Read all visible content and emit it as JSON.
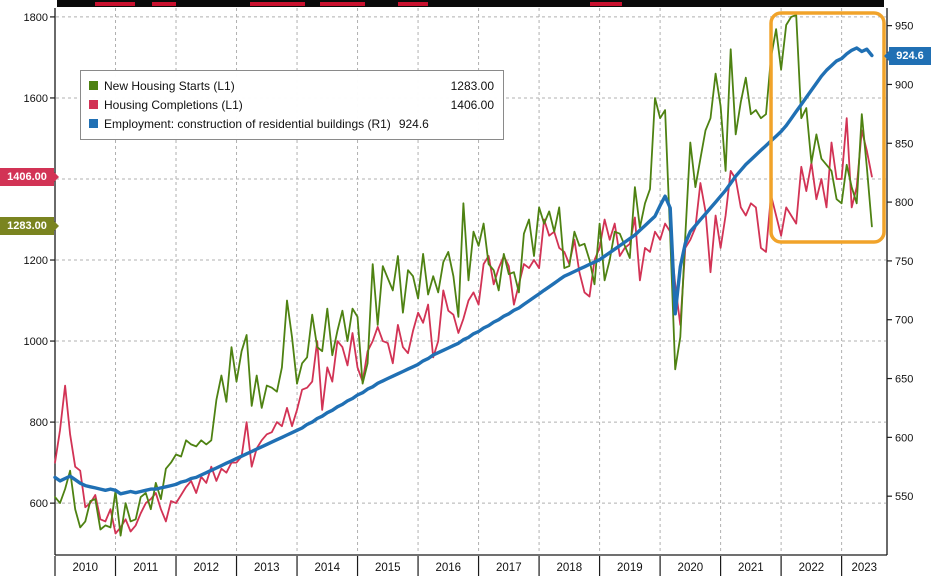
{
  "chart_data": {
    "type": "line",
    "title": "",
    "frequency": "monthly",
    "x_range": "Jan 2010 - Jul 2023",
    "categories": [
      "2010",
      "2011",
      "2012",
      "2013",
      "2014",
      "2015",
      "2016",
      "2017",
      "2018",
      "2019",
      "2020",
      "2021",
      "2022",
      "2023"
    ],
    "grid": true,
    "legend_position": "top-left",
    "left_axis": {
      "min": 472,
      "max": 1822,
      "ticks": [
        600,
        800,
        1000,
        1200,
        1400,
        1600,
        1800
      ]
    },
    "right_axis": {
      "min": 500,
      "max": 965,
      "ticks": [
        550,
        600,
        650,
        700,
        750,
        800,
        850,
        900,
        950
      ]
    },
    "highlight_region": {
      "from_month_index": 142,
      "color": "#f1a32a"
    },
    "series": [
      {
        "name": "New Housing Starts (L1)",
        "axis": "left",
        "color": "#4e8212",
        "last_value": 1283.0,
        "values": [
          615,
          600,
          635,
          680,
          585,
          540,
          555,
          605,
          610,
          535,
          545,
          540,
          630,
          520,
          600,
          555,
          560,
          615,
          625,
          585,
          650,
          610,
          685,
          700,
          720,
          715,
          755,
          745,
          740,
          755,
          745,
          755,
          855,
          915,
          850,
          985,
          900,
          975,
          1015,
          840,
          915,
          835,
          890,
          885,
          875,
          935,
          1100,
          1010,
          895,
          945,
          960,
          1065,
          985,
          975,
          1080,
          965,
          1025,
          1075,
          1000,
          1080,
          1060,
          895,
          945,
          1190,
          1040,
          1185,
          1155,
          1125,
          1210,
          1070,
          1175,
          1160,
          1105,
          1215,
          1115,
          1160,
          1120,
          1195,
          1220,
          1160,
          1060,
          1340,
          1150,
          1270,
          1235,
          1290,
          1190,
          1175,
          1125,
          1215,
          1165,
          1170,
          1120,
          1265,
          1300,
          1210,
          1330,
          1290,
          1320,
          1270,
          1330,
          1180,
          1185,
          1270,
          1235,
          1240,
          1200,
          1140,
          1290,
          1150,
          1200,
          1270,
          1265,
          1235,
          1205,
          1380,
          1280,
          1340,
          1375,
          1600,
          1550,
          1570,
          1260,
          930,
          1010,
          1260,
          1490,
          1380,
          1450,
          1520,
          1550,
          1660,
          1580,
          1420,
          1720,
          1510,
          1590,
          1650,
          1560,
          1570,
          1550,
          1560,
          1700,
          1770,
          1670,
          1780,
          1800,
          1805,
          1550,
          1575,
          1440,
          1510,
          1450,
          1435,
          1420,
          1350,
          1340,
          1435,
          1380,
          1340,
          1560,
          1430,
          1283
        ]
      },
      {
        "name": "Housing Completions (L1)",
        "axis": "left",
        "color": "#d23355",
        "last_value": 1406.0,
        "values": [
          700,
          780,
          890,
          770,
          690,
          680,
          590,
          600,
          620,
          560,
          555,
          585,
          525,
          540,
          560,
          530,
          545,
          575,
          600,
          610,
          625,
          585,
          555,
          605,
          600,
          620,
          640,
          655,
          625,
          665,
          650,
          690,
          655,
          685,
          675,
          700,
          700,
          715,
          800,
          690,
          735,
          755,
          770,
          775,
          800,
          790,
          835,
          790,
          830,
          880,
          885,
          900,
          1000,
          830,
          935,
          900,
          1000,
          985,
          940,
          1020,
          935,
          900,
          975,
          1000,
          1035,
          1000,
          995,
          945,
          1040,
          985,
          970,
          1025,
          1070,
          1045,
          1090,
          960,
          1000,
          1125,
          1075,
          1065,
          1020,
          1055,
          1100,
          1120,
          1090,
          1190,
          1210,
          1140,
          1180,
          1210,
          1185,
          1090,
          1140,
          1190,
          1180,
          1200,
          1180,
          1300,
          1260,
          1270,
          1230,
          1220,
          1190,
          1250,
          1170,
          1120,
          1110,
          1200,
          1230,
          1300,
          1250,
          1290,
          1210,
          1230,
          1240,
          1305,
          1150,
          1230,
          1220,
          1270,
          1250,
          1290,
          1270,
          1140,
          1040,
          1230,
          1250,
          1280,
          1390,
          1320,
          1170,
          1310,
          1230,
          1310,
          1420,
          1400,
          1330,
          1310,
          1340,
          1330,
          1230,
          1220,
          1360,
          1310,
          1260,
          1330,
          1310,
          1290,
          1430,
          1370,
          1440,
          1350,
          1400,
          1330,
          1490,
          1400,
          1400,
          1550,
          1330,
          1380,
          1520,
          1470,
          1406
        ]
      },
      {
        "name": "Employment: construction of residential buildings (R1)",
        "axis": "right",
        "color": "#2070b4",
        "last_value": 924.6,
        "values": [
          566,
          563,
          565,
          567,
          564,
          561,
          559,
          558,
          557,
          556,
          555,
          556,
          555,
          552,
          553,
          554,
          553,
          554,
          555,
          556,
          556,
          557,
          558,
          559,
          560,
          562,
          563,
          565,
          566,
          568,
          570,
          572,
          574,
          576,
          578,
          580,
          582,
          584,
          586,
          588,
          590,
          592,
          594,
          596,
          598,
          600,
          602,
          604,
          606,
          608,
          611,
          613,
          616,
          618,
          621,
          623,
          626,
          628,
          631,
          633,
          636,
          638,
          641,
          643,
          646,
          648,
          650,
          652,
          654,
          656,
          658,
          660,
          662,
          665,
          667,
          670,
          672,
          674,
          676,
          678,
          680,
          683,
          685,
          688,
          690,
          693,
          695,
          698,
          700,
          703,
          705,
          708,
          710,
          713,
          716,
          719,
          722,
          725,
          728,
          731,
          734,
          737,
          739,
          741,
          743,
          745,
          747,
          749,
          751,
          754,
          757,
          760,
          763,
          766,
          769,
          772,
          776,
          780,
          784,
          788,
          797,
          805,
          795,
          705,
          745,
          765,
          775,
          780,
          785,
          790,
          795,
          800,
          805,
          810,
          816,
          822,
          827,
          832,
          836,
          840,
          844,
          848,
          852,
          856,
          860,
          865,
          871,
          877,
          883,
          889,
          895,
          901,
          907,
          912,
          916,
          920,
          922,
          926,
          929,
          931,
          928,
          930,
          924.6
        ]
      }
    ]
  },
  "legend": {
    "rows": [
      {
        "label": "New Housing Starts (L1)",
        "value": "1283.00"
      },
      {
        "label": "Housing Completions (L1)",
        "value": "1406.00"
      },
      {
        "label": "Employment: construction of residential buildings (R1)",
        "value": "924.6"
      }
    ]
  },
  "badges": {
    "left": [
      {
        "text": "1406.00",
        "value": 1406,
        "color": "#d23355"
      },
      {
        "text": "1283.00",
        "value": 1283,
        "color": "#7a8420"
      }
    ],
    "right": [
      {
        "text": "924.6",
        "value": 924.6,
        "color": "#2070b4"
      }
    ]
  },
  "colors": {
    "grid": "#b0b0b0",
    "axis": "#1a1a1a",
    "highlight": "#f1a32a"
  }
}
